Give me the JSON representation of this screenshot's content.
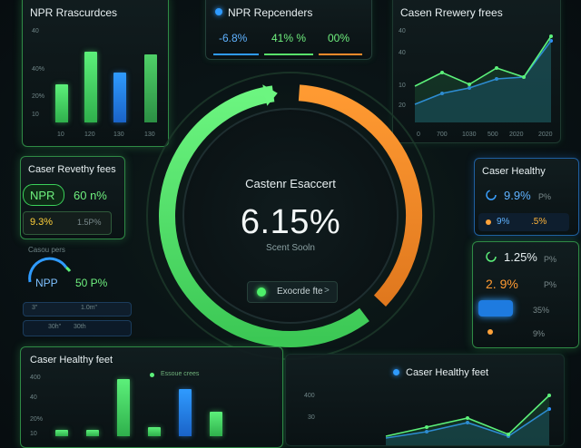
{
  "top_left": {
    "title": "NPR Rrascurdces",
    "y_ticks": [
      "40",
      "40%",
      "20%",
      "10"
    ],
    "x_ticks": [
      "10",
      "120",
      "130",
      "130"
    ],
    "bars": [
      0.42,
      0.78,
      0.55,
      0.75
    ]
  },
  "top_center": {
    "title": "NPR Repcenders",
    "values": [
      "-6.8%",
      "41% %",
      "00%"
    ],
    "colors": [
      "#3aa0ff",
      "#58e06a",
      "#ff8a2a"
    ]
  },
  "top_right": {
    "title": "Casen Rrewery frees",
    "y_ticks": [
      "40",
      "40",
      "10",
      "20"
    ],
    "x_ticks": [
      "0",
      "700",
      "1030",
      "500",
      "2020",
      "2020"
    ],
    "series_green": [
      40,
      55,
      42,
      60,
      50,
      95
    ],
    "series_blue": [
      20,
      32,
      38,
      48,
      50,
      90
    ]
  },
  "gauge": {
    "title": "Castenr Esaccert",
    "value": "6.15%",
    "subtitle": "Scent Sooln",
    "button_label": "Exocrde fte",
    "button_chevron": ">",
    "green_fraction": 0.58,
    "orange_fraction": 0.36
  },
  "mid_left_1": {
    "title": "Caser Revethy fees",
    "npr_label": "NPR",
    "npr_value": "60 n%",
    "row2_left": "9.3%",
    "row2_right": "1.5P%"
  },
  "mid_left_2": {
    "title": "Casou pers",
    "npp_label": "NPP",
    "npp_value": "50 P%",
    "foot_left": "3\"",
    "foot_mid": "1.0m\"",
    "foot_a": "30h\"",
    "foot_b": "30th"
  },
  "right_1": {
    "title": "Caser Healthy",
    "value": "9.9%",
    "value_suffix": "P%",
    "row_left": "9%",
    "row_right": ".5%"
  },
  "right_2": {
    "row1": "1.25%",
    "row2": "2. 9%",
    "row1_suffix": "P%",
    "row2_suffix": "P%",
    "row3_suffix": "35%",
    "row4_suffix": "9%"
  },
  "bottom_left": {
    "title": "Caser Healthy feet",
    "legend": "Essoue crees",
    "y_ticks": [
      "400",
      "40",
      "20%",
      "10"
    ],
    "bars": [
      {
        "value": 0.05,
        "color": "green"
      },
      {
        "value": 0.05,
        "color": "green"
      },
      {
        "value": 0.42,
        "color": "green"
      },
      {
        "value": 0.07,
        "color": "green"
      },
      {
        "value": 0.35,
        "color": "blue"
      },
      {
        "value": 0.18,
        "color": "green"
      }
    ]
  },
  "bottom_right": {
    "title": "Caser Healthy feet",
    "y_ticks": [
      "400",
      "30"
    ],
    "series_green": [
      10,
      20,
      30,
      12,
      55
    ],
    "series_blue": [
      8,
      15,
      25,
      10,
      40
    ]
  }
}
